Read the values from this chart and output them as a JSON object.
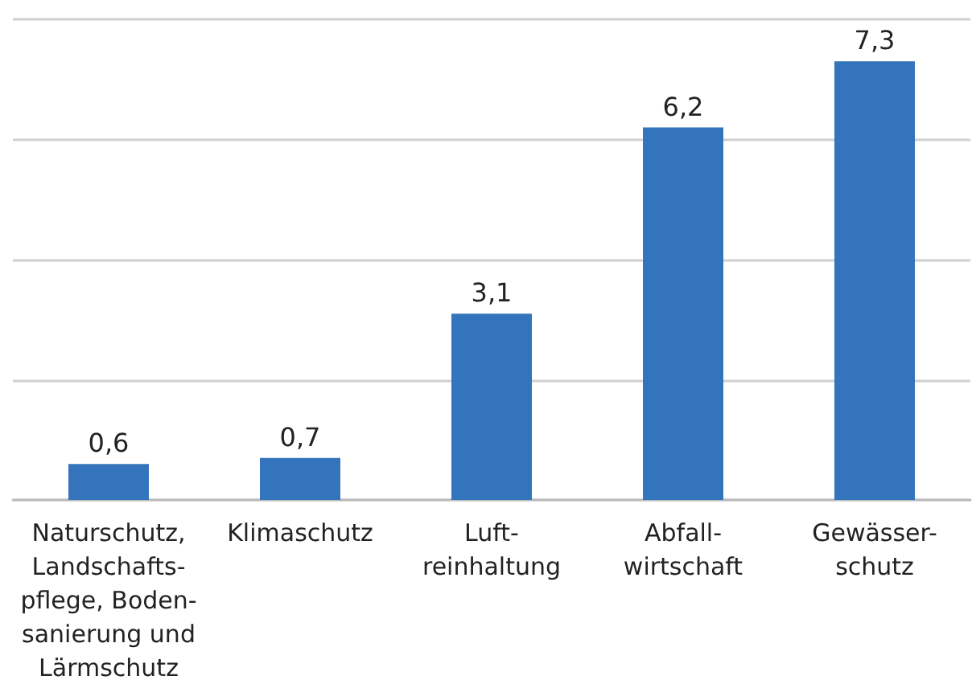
{
  "chart_data": {
    "type": "bar",
    "categories": [
      "Naturschutz,\nLandschafts-\npflege, Boden-\nsanierung und\nLärmschutz",
      "Klimaschutz",
      "Luft-\nreinhaltung",
      "Abfall-\nwirtschaft",
      "Gewässer-\nschutz"
    ],
    "values": [
      0.6,
      0.7,
      3.1,
      6.2,
      7.3
    ],
    "value_labels": [
      "0,6",
      "0,7",
      "3,1",
      "6,2",
      "7,3"
    ],
    "color": "#3474bc",
    "grid": "y",
    "tick_labels": "x"
  }
}
